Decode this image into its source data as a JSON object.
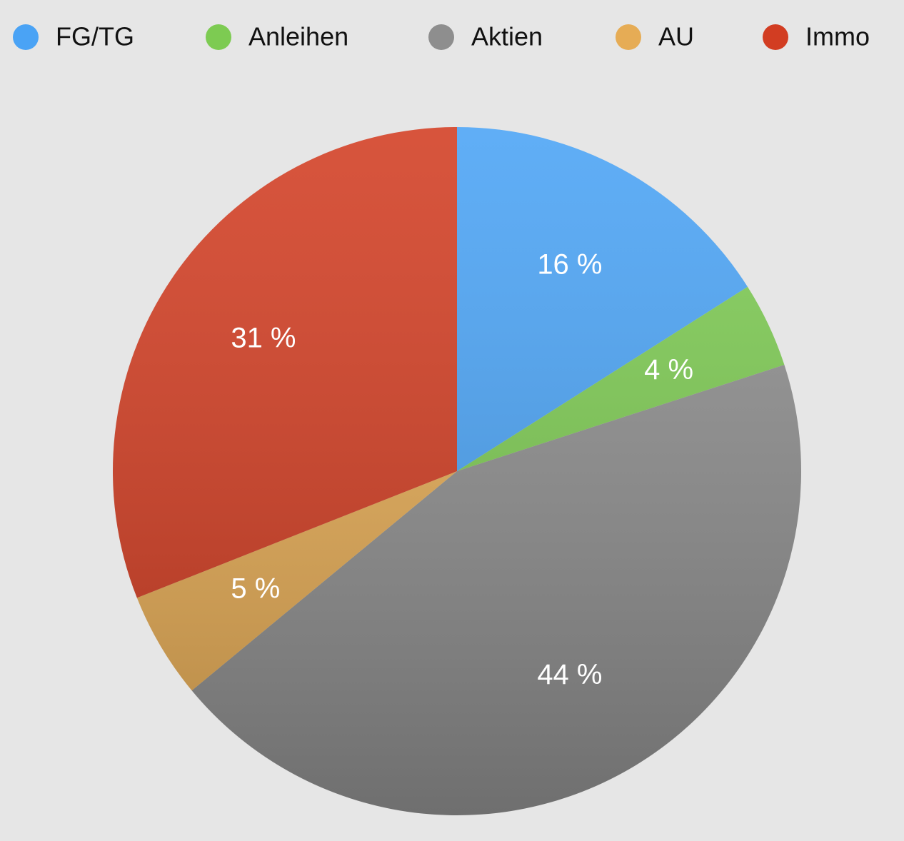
{
  "chart_data": {
    "type": "pie",
    "categories": [
      "FG/TG",
      "Anleihen",
      "Aktien",
      "AU",
      "Immo"
    ],
    "values": [
      16,
      4,
      44,
      5,
      31
    ],
    "value_labels": [
      "16 %",
      "4 %",
      "44 %",
      "5 %",
      "31 %"
    ],
    "colors": [
      "#4aa3f5",
      "#7dcb52",
      "#8e8e8e",
      "#e6ac55",
      "#d23d22"
    ],
    "legend": "top"
  }
}
